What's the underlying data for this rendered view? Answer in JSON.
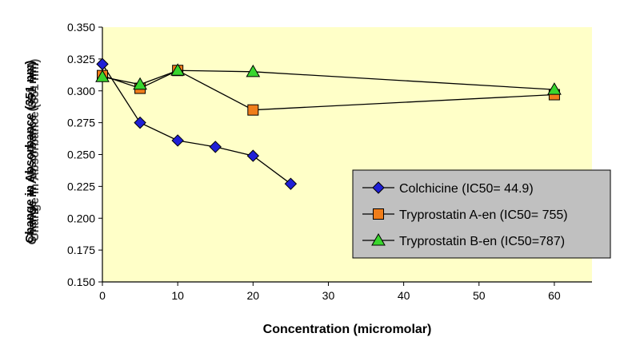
{
  "chart_data": {
    "type": "line",
    "title": "",
    "xlabel": "Concentration (micromolar)",
    "ylabel_overlap": [
      "Change in Absorbance (351 nm)",
      "Change in Absorbance (351 nm)",
      "Change in Absorbance (351 nm)"
    ],
    "xlim": [
      0,
      65
    ],
    "ylim": [
      0.15,
      0.35
    ],
    "x_ticks": [
      "0",
      "10",
      "20",
      "30",
      "40",
      "50",
      "60"
    ],
    "y_ticks": [
      "0.150",
      "0.175",
      "0.200",
      "0.225",
      "0.250",
      "0.275",
      "0.300",
      "0.325",
      "0.350"
    ],
    "legend_position": "bottom-right",
    "series": [
      {
        "name": "Colchicine (IC50= 44.9)",
        "marker": "diamond",
        "color": "#1f1fd6",
        "x": [
          0,
          5,
          10,
          15,
          20,
          25
        ],
        "y": [
          0.321,
          0.275,
          0.261,
          0.256,
          0.249,
          0.227
        ]
      },
      {
        "name": "Tryprostatin A-en (IC50= 755)",
        "marker": "square",
        "color": "#f07d1a",
        "x": [
          0,
          5,
          10,
          20,
          60
        ],
        "y": [
          0.312,
          0.302,
          0.316,
          0.285,
          0.297
        ]
      },
      {
        "name": "Tryprostatin B-en (IC50=787)",
        "marker": "triangle",
        "color": "#39d62e",
        "x": [
          0,
          5,
          10,
          20,
          60
        ],
        "y": [
          0.311,
          0.305,
          0.316,
          0.315,
          0.301
        ]
      }
    ],
    "colors": {
      "plot_bg": "#ffffc8",
      "legend_bg": "#c0c0c0",
      "line": "#000000"
    }
  }
}
